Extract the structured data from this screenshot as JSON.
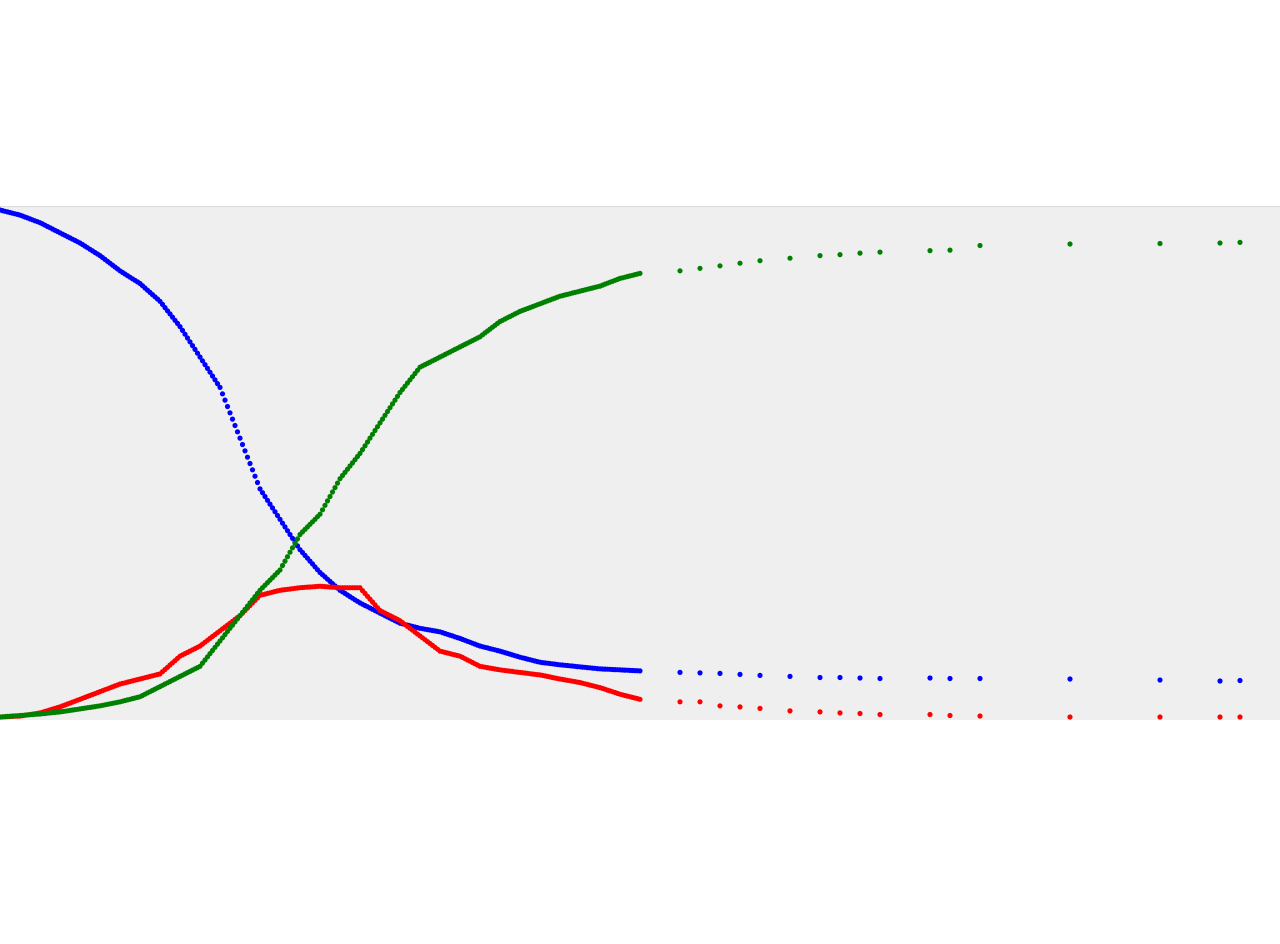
{
  "chart_data": {
    "type": "scatter",
    "title": "",
    "xlabel": "",
    "ylabel": "",
    "grid": false,
    "legend": "none",
    "xlim": [
      0,
      1280
    ],
    "ylim": [
      0,
      1
    ],
    "series": [
      {
        "color": "#0000ff",
        "x": [
          0,
          20,
          40,
          60,
          80,
          100,
          120,
          140,
          160,
          180,
          200,
          220,
          240,
          260,
          280,
          300,
          320,
          340,
          360,
          380,
          400,
          420,
          440,
          460,
          480,
          500,
          520,
          540,
          560,
          580,
          600,
          620,
          640,
          680,
          700,
          720,
          740,
          760,
          790,
          820,
          840,
          860,
          880,
          930,
          950,
          980,
          1070,
          1160,
          1220,
          1240
        ],
        "y": [
          1.0,
          0.99,
          0.975,
          0.955,
          0.935,
          0.91,
          0.88,
          0.855,
          0.82,
          0.77,
          0.71,
          0.65,
          0.55,
          0.45,
          0.39,
          0.33,
          0.285,
          0.25,
          0.225,
          0.205,
          0.185,
          0.175,
          0.168,
          0.155,
          0.14,
          0.13,
          0.118,
          0.108,
          0.103,
          0.099,
          0.095,
          0.093,
          0.091,
          0.088,
          0.087,
          0.086,
          0.084,
          0.082,
          0.08,
          0.078,
          0.078,
          0.077,
          0.076,
          0.077,
          0.076,
          0.076,
          0.075,
          0.073,
          0.071,
          0.072
        ]
      },
      {
        "color": "#ff0000",
        "x": [
          0,
          20,
          40,
          60,
          80,
          100,
          120,
          140,
          160,
          180,
          200,
          220,
          240,
          260,
          280,
          300,
          320,
          340,
          360,
          380,
          400,
          420,
          440,
          460,
          480,
          500,
          520,
          540,
          560,
          580,
          600,
          620,
          640,
          680,
          700,
          720,
          740,
          760,
          790,
          820,
          840,
          860,
          880,
          930,
          950,
          980,
          1070,
          1160,
          1220,
          1240
        ],
        "y": [
          0.0,
          0.002,
          0.008,
          0.02,
          0.035,
          0.05,
          0.065,
          0.075,
          0.085,
          0.12,
          0.14,
          0.17,
          0.2,
          0.24,
          0.25,
          0.255,
          0.258,
          0.255,
          0.255,
          0.21,
          0.19,
          0.16,
          0.13,
          0.12,
          0.1,
          0.093,
          0.088,
          0.083,
          0.075,
          0.068,
          0.058,
          0.045,
          0.035,
          0.03,
          0.03,
          0.022,
          0.02,
          0.017,
          0.012,
          0.01,
          0.008,
          0.007,
          0.005,
          0.005,
          0.003,
          0.002,
          0.0,
          0.0,
          0.0,
          0.0
        ]
      },
      {
        "color": "#008000",
        "x": [
          0,
          20,
          40,
          60,
          80,
          100,
          120,
          140,
          160,
          180,
          200,
          220,
          240,
          260,
          280,
          300,
          320,
          340,
          360,
          380,
          400,
          420,
          440,
          460,
          480,
          500,
          520,
          540,
          560,
          580,
          600,
          620,
          640,
          680,
          700,
          720,
          740,
          760,
          790,
          820,
          840,
          860,
          880,
          930,
          950,
          980,
          1070,
          1160,
          1220,
          1240
        ],
        "y": [
          0.0,
          0.003,
          0.006,
          0.01,
          0.016,
          0.022,
          0.03,
          0.04,
          0.06,
          0.08,
          0.1,
          0.15,
          0.2,
          0.25,
          0.29,
          0.36,
          0.4,
          0.47,
          0.52,
          0.58,
          0.64,
          0.69,
          0.71,
          0.73,
          0.75,
          0.78,
          0.8,
          0.815,
          0.83,
          0.84,
          0.85,
          0.865,
          0.875,
          0.88,
          0.885,
          0.89,
          0.895,
          0.9,
          0.905,
          0.91,
          0.912,
          0.915,
          0.917,
          0.92,
          0.921,
          0.93,
          0.933,
          0.934,
          0.935,
          0.936
        ]
      }
    ]
  }
}
